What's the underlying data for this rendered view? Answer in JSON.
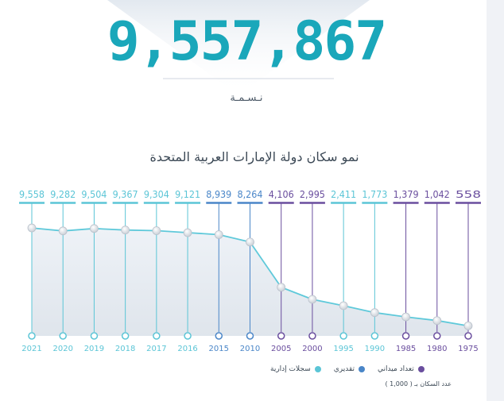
{
  "headline": {
    "population": "9,557,867",
    "caption": "نـسـمـة"
  },
  "chart_data": {
    "type": "line",
    "title": "نمو سكان دولة الإمارات العربية المتحدة",
    "x": [
      "2021",
      "2020",
      "2019",
      "2018",
      "2017",
      "2016",
      "2015",
      "2010",
      "2005",
      "2000",
      "1995",
      "1990",
      "1985",
      "1980",
      "1975"
    ],
    "value_labels": [
      "9,558",
      "9,282",
      "9,504",
      "9,367",
      "9,304",
      "9,121",
      "8,939",
      "8,264",
      "4,106",
      "2,995",
      "2,411",
      "1,773",
      "1,379",
      "1,042",
      "558"
    ],
    "values": [
      9558,
      9282,
      9504,
      9367,
      9304,
      9121,
      8939,
      8264,
      4106,
      2995,
      2411,
      1773,
      1379,
      1042,
      558
    ],
    "source": [
      "admin",
      "admin",
      "admin",
      "admin",
      "admin",
      "admin",
      "estimate",
      "estimate",
      "census",
      "census",
      "admin",
      "admin",
      "census",
      "census",
      "census"
    ],
    "xlabel": "",
    "ylabel": "",
    "grid": false,
    "legend_position": "bottom-right",
    "legend": [
      {
        "key": "census",
        "label": "تعداد ميداني",
        "color": "#6a4e9e"
      },
      {
        "key": "estimate",
        "label": "تقديري",
        "color": "#4a86c8"
      },
      {
        "key": "admin",
        "label": "سجلات إدارية",
        "color": "#5bc5d6"
      }
    ],
    "note": "عدد السكان بـ ( 1,000 )"
  },
  "colors": {
    "accent": "#1aa7ba",
    "line": "#5fc9da",
    "area": "#e6eef5"
  }
}
